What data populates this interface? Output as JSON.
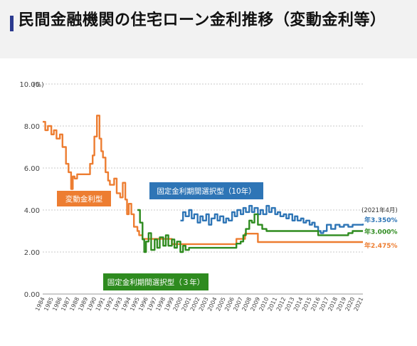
{
  "page": {
    "title": "民間金融機関の住宅ローン金利推移（変動金利等）"
  },
  "chart_data": {
    "type": "line",
    "ylabel_unit": "(%)",
    "ylim": [
      0,
      10
    ],
    "yticks": [
      "0.00",
      "2.00",
      "4.00",
      "6.00",
      "8.00",
      "10.00"
    ],
    "xticks": [
      "1984",
      "1985",
      "1986",
      "1987",
      "1988",
      "1989",
      "1990",
      "1991",
      "1992",
      "1993",
      "1994",
      "1995",
      "1996",
      "1997",
      "1998",
      "1999",
      "2000",
      "2001",
      "2002",
      "2003",
      "2004",
      "2005",
      "2006",
      "2007",
      "2008",
      "2009",
      "2010",
      "2011",
      "2012",
      "2013",
      "2014",
      "2015",
      "2016",
      "2017",
      "2018",
      "2019",
      "2020",
      "2021"
    ],
    "xlim": [
      1984,
      2021.2
    ],
    "grid": true,
    "annotation_date": "(2021年4月)",
    "series": [
      {
        "name": "変動金利型",
        "color": "#ed7d31",
        "end_label": "年2.475%",
        "x": [
          1984.0,
          1984.3,
          1984.6,
          1985.0,
          1985.3,
          1985.6,
          1986.0,
          1986.3,
          1986.7,
          1987.0,
          1987.3,
          1987.5,
          1987.7,
          1988.0,
          1988.5,
          1989.0,
          1989.5,
          1989.8,
          1990.0,
          1990.3,
          1990.6,
          1990.8,
          1991.0,
          1991.3,
          1991.6,
          1991.8,
          1992.0,
          1992.3,
          1992.6,
          1993.0,
          1993.3,
          1993.6,
          1993.8,
          1994.0,
          1994.3,
          1994.6,
          1995.0,
          1995.2,
          1995.4,
          1995.6,
          1996.0,
          1996.5,
          1997.0,
          1998.0,
          1999.0,
          2000.0,
          2001.0,
          2002.0,
          2003.0,
          2004.0,
          2005.0,
          2006.0,
          2006.5,
          2007.0,
          2007.5,
          2008.0,
          2009.0,
          2010.0,
          2015.0,
          2021.2
        ],
        "y": [
          8.2,
          7.8,
          8.0,
          7.6,
          7.8,
          7.4,
          7.6,
          7.0,
          6.2,
          5.8,
          5.0,
          5.6,
          5.5,
          5.7,
          5.7,
          5.7,
          6.2,
          6.6,
          7.5,
          8.5,
          7.4,
          6.8,
          6.5,
          5.8,
          5.4,
          5.2,
          5.2,
          5.5,
          4.8,
          4.6,
          5.3,
          4.5,
          3.8,
          4.3,
          3.8,
          3.2,
          3.0,
          2.8,
          2.8,
          2.625,
          2.625,
          2.625,
          2.625,
          2.625,
          2.375,
          2.375,
          2.375,
          2.375,
          2.375,
          2.375,
          2.375,
          2.375,
          2.625,
          2.625,
          2.875,
          2.875,
          2.475,
          2.475,
          2.475,
          2.475
        ]
      },
      {
        "name": "固定金利期間選択型（10年）",
        "color": "#2e75b6",
        "end_label": "年3.350%",
        "x": [
          2000.0,
          2000.3,
          2000.6,
          2001.0,
          2001.3,
          2001.6,
          2002.0,
          2002.3,
          2002.6,
          2003.0,
          2003.3,
          2003.6,
          2004.0,
          2004.3,
          2004.6,
          2005.0,
          2005.3,
          2005.6,
          2006.0,
          2006.3,
          2006.6,
          2007.0,
          2007.3,
          2007.6,
          2008.0,
          2008.3,
          2008.6,
          2009.0,
          2009.3,
          2009.6,
          2010.0,
          2010.3,
          2010.6,
          2011.0,
          2011.3,
          2011.6,
          2012.0,
          2012.3,
          2012.6,
          2013.0,
          2013.3,
          2013.6,
          2014.0,
          2014.3,
          2014.6,
          2015.0,
          2015.3,
          2015.6,
          2016.0,
          2016.3,
          2016.6,
          2017.0,
          2017.5,
          2018.0,
          2018.5,
          2019.0,
          2019.5,
          2020.0,
          2020.5,
          2021.2
        ],
        "y": [
          3.5,
          3.9,
          3.7,
          4.0,
          3.6,
          3.8,
          3.4,
          3.7,
          3.5,
          3.8,
          3.3,
          3.6,
          3.8,
          3.5,
          3.7,
          3.4,
          3.6,
          3.5,
          3.9,
          3.7,
          4.0,
          3.8,
          4.1,
          3.9,
          4.2,
          3.9,
          4.1,
          3.8,
          4.0,
          3.8,
          4.2,
          3.9,
          4.1,
          3.8,
          3.9,
          3.7,
          3.8,
          3.6,
          3.8,
          3.5,
          3.7,
          3.5,
          3.6,
          3.4,
          3.5,
          3.3,
          3.4,
          3.2,
          3.0,
          2.9,
          3.0,
          3.3,
          3.1,
          3.3,
          3.2,
          3.3,
          3.2,
          3.3,
          3.3,
          3.35
        ]
      },
      {
        "name": "固定金利期間選択型（３年）",
        "color": "#2e8b1f",
        "end_label": "年3.000%",
        "x": [
          1995.0,
          1995.3,
          1995.6,
          1995.8,
          1996.0,
          1996.3,
          1996.6,
          1997.0,
          1997.3,
          1997.6,
          1998.0,
          1998.3,
          1998.6,
          1999.0,
          1999.3,
          1999.6,
          2000.0,
          2000.3,
          2000.6,
          2001.0,
          2001.5,
          2002.0,
          2003.0,
          2004.0,
          2005.0,
          2006.0,
          2006.5,
          2007.0,
          2007.3,
          2007.6,
          2008.0,
          2008.3,
          2008.6,
          2009.0,
          2009.5,
          2010.0,
          2011.0,
          2012.0,
          2013.0,
          2014.0,
          2015.0,
          2016.0,
          2017.0,
          2018.0,
          2019.0,
          2019.5,
          2020.0,
          2021.2
        ],
        "y": [
          4.0,
          3.4,
          2.6,
          2.0,
          2.5,
          2.9,
          2.1,
          2.6,
          2.2,
          2.7,
          2.3,
          2.8,
          2.3,
          2.6,
          2.2,
          2.5,
          2.0,
          2.3,
          2.1,
          2.2,
          2.2,
          2.2,
          2.2,
          2.2,
          2.2,
          2.2,
          2.4,
          2.5,
          2.8,
          3.1,
          3.5,
          3.4,
          3.8,
          3.3,
          3.1,
          3.0,
          3.0,
          3.0,
          3.0,
          3.0,
          3.0,
          2.8,
          2.8,
          2.8,
          2.8,
          2.9,
          3.0,
          3.0
        ]
      }
    ]
  }
}
